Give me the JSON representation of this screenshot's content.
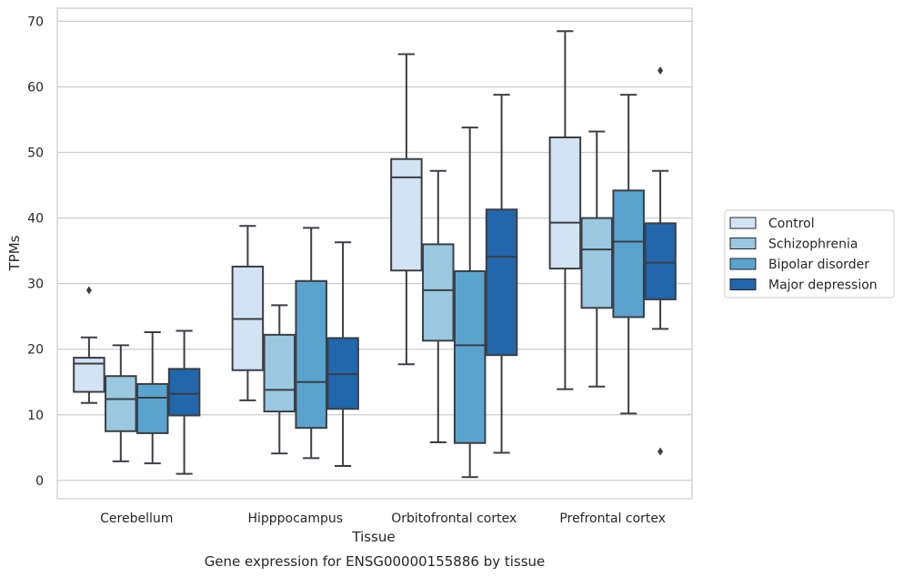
{
  "chart_data": {
    "type": "boxplot",
    "xlabel": "Tissue",
    "ylabel": "TPMs",
    "caption": "Gene expression for ENSG00000155886 by tissue",
    "categories": [
      "Cerebellum",
      "Hipppocampus",
      "Orbitofrontal cortex",
      "Prefrontal cortex"
    ],
    "ylim": [
      -2.8,
      72
    ],
    "yticks": [
      0,
      10,
      20,
      30,
      40,
      50,
      60,
      70
    ],
    "grid": "horizontal",
    "legend_position": "right",
    "series": [
      {
        "name": "Control",
        "color": "#d2e3f3",
        "boxes": [
          {
            "whisker_low": 11.8,
            "q1": 13.5,
            "median": 17.8,
            "q3": 18.7,
            "whisker_high": 21.8,
            "outliers": [
              29.0
            ]
          },
          {
            "whisker_low": 12.2,
            "q1": 16.8,
            "median": 24.6,
            "q3": 32.6,
            "whisker_high": 38.8,
            "outliers": []
          },
          {
            "whisker_low": 17.7,
            "q1": 32.0,
            "median": 46.2,
            "q3": 49.0,
            "whisker_high": 65.0,
            "outliers": []
          },
          {
            "whisker_low": 13.9,
            "q1": 32.3,
            "median": 39.3,
            "q3": 52.3,
            "whisker_high": 68.5,
            "outliers": []
          }
        ]
      },
      {
        "name": "Schizophrenia",
        "color": "#9ac8e0",
        "boxes": [
          {
            "whisker_low": 2.9,
            "q1": 7.5,
            "median": 12.4,
            "q3": 15.9,
            "whisker_high": 20.6,
            "outliers": []
          },
          {
            "whisker_low": 4.1,
            "q1": 10.5,
            "median": 13.8,
            "q3": 22.2,
            "whisker_high": 26.7,
            "outliers": []
          },
          {
            "whisker_low": 5.8,
            "q1": 21.3,
            "median": 29.0,
            "q3": 36.0,
            "whisker_high": 47.2,
            "outliers": []
          },
          {
            "whisker_low": 14.3,
            "q1": 26.3,
            "median": 35.2,
            "q3": 40.0,
            "whisker_high": 53.2,
            "outliers": []
          }
        ]
      },
      {
        "name": "Bipolar disorder",
        "color": "#5ba3cf",
        "boxes": [
          {
            "whisker_low": 2.6,
            "q1": 7.2,
            "median": 12.6,
            "q3": 14.7,
            "whisker_high": 22.6,
            "outliers": []
          },
          {
            "whisker_low": 3.4,
            "q1": 8.0,
            "median": 15.0,
            "q3": 30.4,
            "whisker_high": 38.5,
            "outliers": []
          },
          {
            "whisker_low": 0.5,
            "q1": 5.7,
            "median": 20.6,
            "q3": 31.9,
            "whisker_high": 53.8,
            "outliers": []
          },
          {
            "whisker_low": 10.2,
            "q1": 24.9,
            "median": 36.4,
            "q3": 44.2,
            "whisker_high": 58.8,
            "outliers": []
          }
        ]
      },
      {
        "name": "Major depression",
        "color": "#2266ac",
        "boxes": [
          {
            "whisker_low": 1.0,
            "q1": 9.9,
            "median": 13.2,
            "q3": 17.0,
            "whisker_high": 22.8,
            "outliers": []
          },
          {
            "whisker_low": 2.2,
            "q1": 10.9,
            "median": 16.2,
            "q3": 21.7,
            "whisker_high": 36.3,
            "outliers": []
          },
          {
            "whisker_low": 4.2,
            "q1": 19.1,
            "median": 34.1,
            "q3": 41.3,
            "whisker_high": 58.8,
            "outliers": []
          },
          {
            "whisker_low": 23.1,
            "q1": 27.6,
            "median": 33.2,
            "q3": 39.2,
            "whisker_high": 47.2,
            "outliers": [
              62.5,
              4.4
            ]
          }
        ]
      }
    ]
  }
}
